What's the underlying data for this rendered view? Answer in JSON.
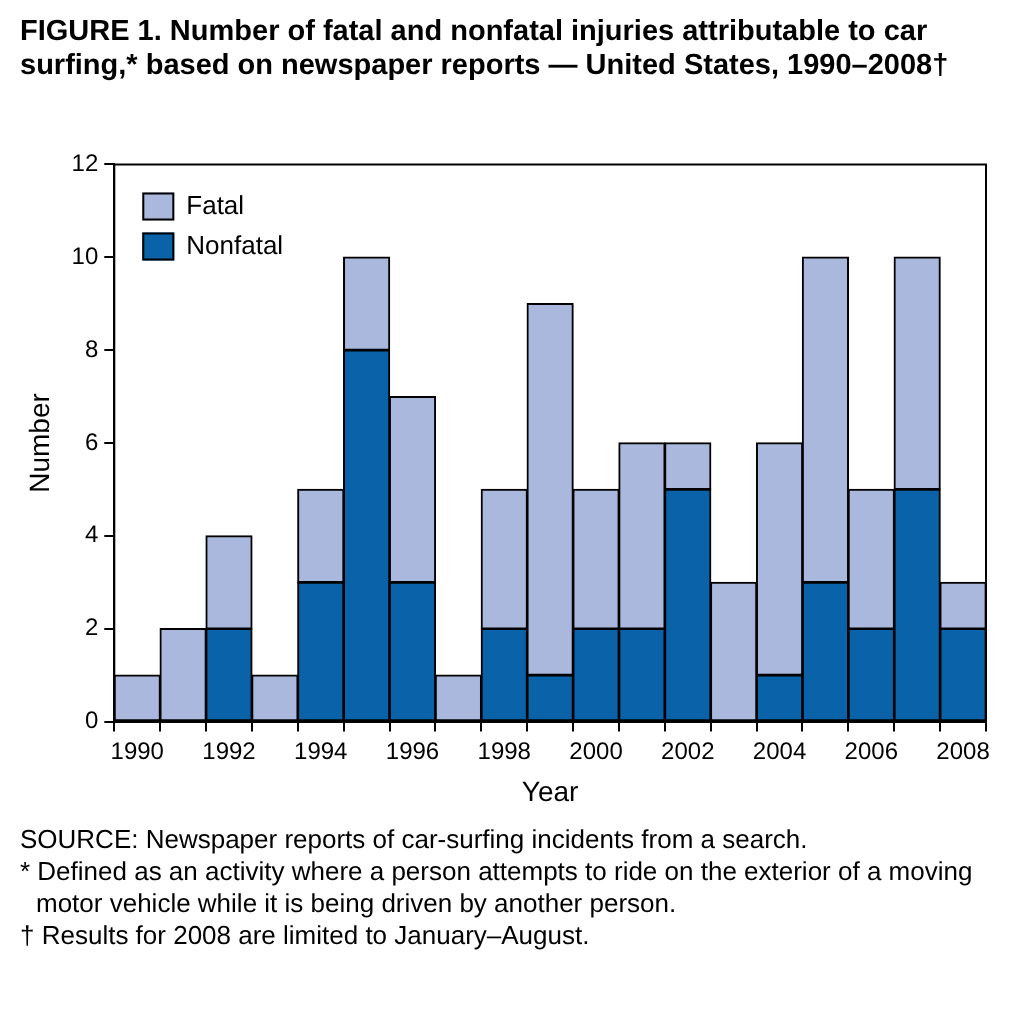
{
  "chart_data": {
    "type": "bar",
    "title": "FIGURE 1.  Number of fatal and nonfatal injuries attributable to car surfing,* based on newspaper reports — United States, 1990–2008†",
    "xlabel": "Year",
    "ylabel": "Number",
    "categories": [
      "1990",
      null,
      "1992",
      null,
      "1994",
      null,
      "1996",
      null,
      "1998",
      null,
      "2000",
      null,
      "2002",
      null,
      "2004",
      null,
      "2006",
      null,
      "2008"
    ],
    "series": [
      {
        "name": "Nonfatal",
        "color": "#0a63a8",
        "values": [
          0,
          0,
          2,
          0,
          3,
          8,
          3,
          0,
          2,
          1,
          2,
          2,
          5,
          0,
          1,
          3,
          2,
          5,
          2
        ]
      },
      {
        "name": "Fatal",
        "color": "#a9b8dc",
        "values": [
          1,
          2,
          2,
          1,
          2,
          2,
          4,
          1,
          3,
          8,
          3,
          4,
          1,
          3,
          5,
          7,
          3,
          5,
          1
        ]
      }
    ],
    "stacked": true,
    "ylim": [
      0,
      12
    ],
    "yticks": [
      0,
      2,
      4,
      6,
      8,
      10,
      12
    ],
    "legend": "top left",
    "annotations": [
      "SOURCE: Newspaper reports of car-surfing incidents from a search.",
      "* Defined as an activity where a person attempts to ride on the exterior of a moving motor vehicle while it is being driven by another person.",
      "† Results for 2008 are limited to January–August."
    ]
  }
}
